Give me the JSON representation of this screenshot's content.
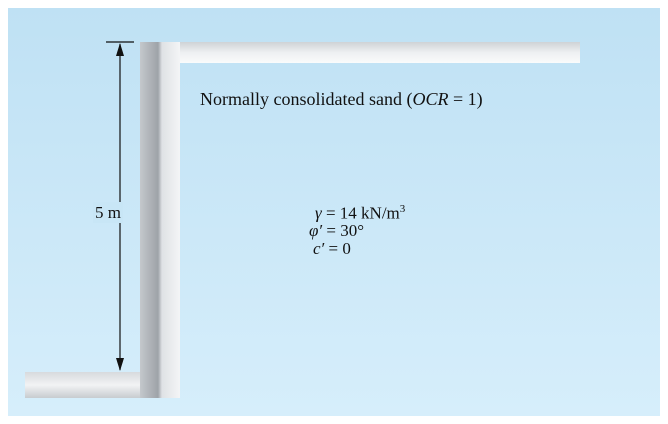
{
  "dimension": {
    "label": "5 m"
  },
  "soil": {
    "description": {
      "prefix": "Normally consolidated sand (",
      "ratio": "OCR",
      "suffix": " = 1)"
    },
    "properties": [
      {
        "symbol": "γ",
        "text": " = 14 kN/m",
        "sup": "3"
      },
      {
        "symbol": "φ′",
        "text": " = 30°"
      },
      {
        "symbol": "c′",
        "text": " = 0"
      }
    ]
  }
}
